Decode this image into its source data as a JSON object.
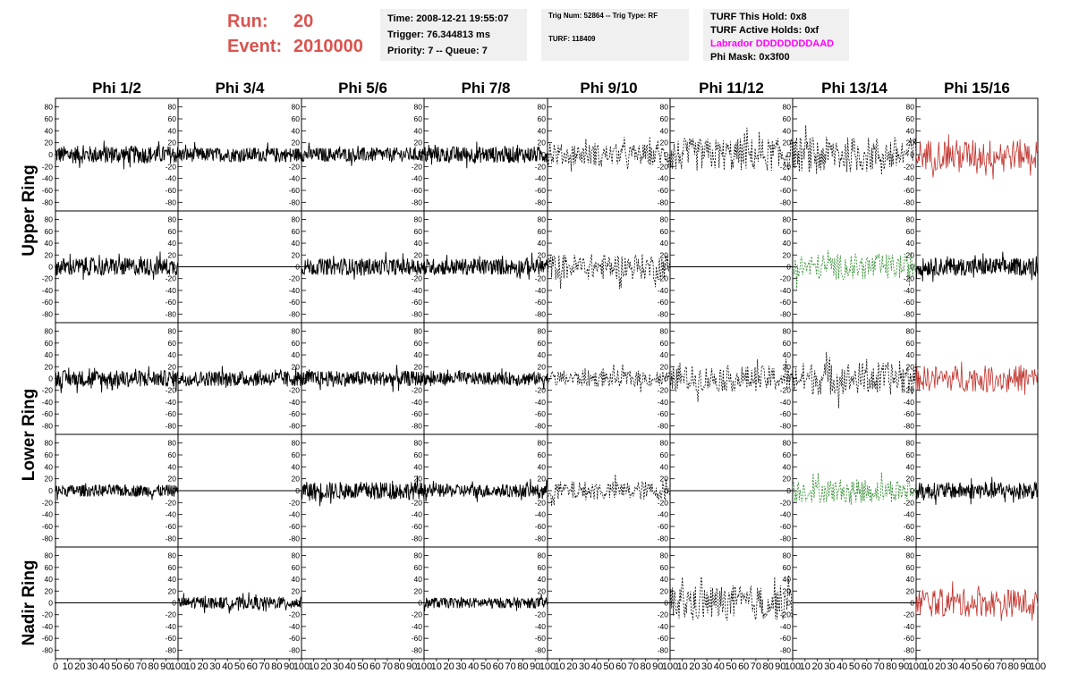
{
  "header": {
    "run_label": "Run:",
    "run_value": "20",
    "event_label": "Event:",
    "event_value": "2010000"
  },
  "info_time": {
    "time": "Time: 2008-12-21 19:55:07",
    "trigger": "Trigger: 76.344813 ms",
    "priority": "Priority: 7 -- Queue: 7"
  },
  "info_trig": {
    "trig": "Trig Num: 52864 -- Trig Type: RF",
    "turf": "TURF: 118409"
  },
  "info_turf": {
    "this_hold": "TURF This Hold: 0x8",
    "active_holds": "TURF Active Holds: 0xf",
    "labrador": "Labrador DDDDDDDDAAD",
    "phi_mask": "Phi Mask: 0x3f00"
  },
  "columns": [
    "Phi 1/2",
    "Phi 3/4",
    "Phi 5/6",
    "Phi 7/8",
    "Phi 9/10",
    "Phi 11/12",
    "Phi 13/14",
    "Phi 15/16"
  ],
  "rings": [
    "Upper Ring",
    "Lower Ring",
    "Nadir Ring"
  ],
  "colors": {
    "run_text": "#d9534f",
    "labrador_text": "#ff00ff",
    "trace_black": "#000000",
    "trace_red": "#c0302a",
    "trace_green": "#2a8a2a"
  },
  "axis": {
    "y_ticks": [
      "80",
      "60",
      "40",
      "20",
      "0",
      "-20",
      "-40",
      "-60",
      "-80"
    ],
    "x_ticks_first": [
      "0",
      "10",
      "20",
      "30",
      "40",
      "50",
      "60",
      "70",
      "80",
      "90",
      "100"
    ],
    "x_ticks_rest": [
      "10",
      "20",
      "30",
      "40",
      "50",
      "60",
      "70",
      "80",
      "90",
      "100"
    ]
  },
  "panels": [
    [
      "solid",
      "solid",
      "solid",
      "solid",
      "dashed",
      "dashed",
      "dashed",
      "red"
    ],
    [
      "solid",
      "flat",
      "solid",
      "solid",
      "dashed",
      "flat",
      "green",
      "solid"
    ],
    [
      "solid",
      "solid",
      "solid",
      "solid",
      "dashed",
      "dashed",
      "dashed",
      "red"
    ],
    [
      "solid",
      "flat",
      "solid",
      "solid",
      "dashed",
      "flat",
      "green",
      "solid"
    ],
    [
      "flat",
      "solid",
      "flat",
      "solid",
      "flat",
      "dashed",
      "flat",
      "red"
    ]
  ],
  "amplitudes": [
    [
      15,
      12,
      12,
      14,
      18,
      28,
      30,
      26
    ],
    [
      15,
      0,
      14,
      14,
      22,
      0,
      22,
      15
    ],
    [
      14,
      13,
      13,
      11,
      14,
      22,
      28,
      22
    ],
    [
      10,
      0,
      15,
      11,
      16,
      0,
      20,
      14
    ],
    [
      0,
      10,
      0,
      9,
      0,
      30,
      0,
      24
    ]
  ]
}
